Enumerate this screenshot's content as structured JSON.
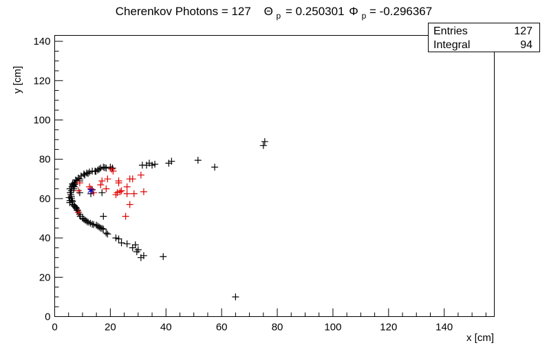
{
  "chart_data": {
    "type": "scatter",
    "title": {
      "prefix": "Cherenkov Photons = 127",
      "theta_symbol": "Θ",
      "theta_sub": "p",
      "theta_value": " = 0.250301",
      "phi_symbol": "Φ",
      "phi_sub": "p",
      "phi_value": " = -0.296367"
    },
    "xlabel": "x [cm]",
    "ylabel": "y [cm]",
    "xlim": [
      0,
      158
    ],
    "ylim": [
      0,
      143
    ],
    "xticks": [
      0,
      20,
      40,
      60,
      80,
      100,
      120,
      140
    ],
    "yticks": [
      0,
      20,
      40,
      60,
      80,
      100,
      120,
      140
    ],
    "stats": {
      "rows": [
        {
          "label": "Entries",
          "value": "127"
        },
        {
          "label": "Integral",
          "value": "94"
        }
      ]
    },
    "series": [
      {
        "color": "#000000",
        "marker": "plus",
        "points": [
          [
            5.5,
            59
          ],
          [
            5.8,
            62
          ],
          [
            6,
            64
          ],
          [
            5.5,
            65
          ],
          [
            6.2,
            66
          ],
          [
            6.6,
            67
          ],
          [
            7,
            68
          ],
          [
            7.6,
            69.5
          ],
          [
            8.5,
            70.5
          ],
          [
            9.5,
            71.5
          ],
          [
            10.5,
            72.5
          ],
          [
            11.5,
            73
          ],
          [
            12.5,
            73.5
          ],
          [
            13.5,
            74
          ],
          [
            14.5,
            74
          ],
          [
            15.5,
            74.5
          ],
          [
            16.5,
            75.5
          ],
          [
            17.5,
            76
          ],
          [
            18.5,
            75.5
          ],
          [
            20,
            76
          ],
          [
            20.8,
            75.5
          ],
          [
            6,
            60
          ],
          [
            6.2,
            59
          ],
          [
            5.4,
            58
          ],
          [
            6.5,
            57
          ],
          [
            7.2,
            56
          ],
          [
            7.8,
            55
          ],
          [
            8.3,
            54
          ],
          [
            8.6,
            53
          ],
          [
            9,
            52
          ],
          [
            10,
            50
          ],
          [
            11,
            49
          ],
          [
            12,
            48
          ],
          [
            13.5,
            47
          ],
          [
            15,
            46.5
          ],
          [
            15.5,
            46
          ],
          [
            16.5,
            45
          ],
          [
            17.5,
            44.5
          ],
          [
            18.5,
            42.5
          ],
          [
            22,
            40
          ],
          [
            23,
            39.5
          ],
          [
            26,
            37
          ],
          [
            29,
            36.5
          ],
          [
            29.5,
            33
          ],
          [
            31,
            30
          ],
          [
            39,
            30.5
          ],
          [
            65,
            10
          ],
          [
            31.5,
            77
          ],
          [
            33,
            77
          ],
          [
            34,
            78
          ],
          [
            35,
            77
          ],
          [
            41,
            78
          ],
          [
            51.5,
            79.5
          ],
          [
            57.5,
            76
          ],
          [
            75,
            87
          ],
          [
            75.5,
            89
          ],
          [
            17,
            63
          ],
          [
            9,
            63
          ],
          [
            13,
            62.5
          ],
          [
            13.5,
            64.5
          ],
          [
            17.5,
            51
          ],
          [
            7,
            66
          ],
          [
            6.4,
            67.5
          ],
          [
            7.4,
            68
          ],
          [
            9,
            69
          ],
          [
            5.7,
            63
          ],
          [
            6.8,
            65
          ],
          [
            10.8,
            72
          ],
          [
            12,
            72.8
          ],
          [
            14.8,
            73.8
          ],
          [
            16,
            75
          ],
          [
            18,
            75.8
          ],
          [
            6.4,
            58.5
          ],
          [
            7,
            56.5
          ],
          [
            7.6,
            55.5
          ],
          [
            8,
            54.2
          ],
          [
            9.2,
            51
          ],
          [
            10.5,
            49.5
          ],
          [
            11.5,
            48.5
          ],
          [
            12.8,
            47.5
          ],
          [
            14,
            46.8
          ],
          [
            16,
            45.5
          ],
          [
            17,
            44.8
          ],
          [
            19,
            42
          ],
          [
            24,
            37.5
          ],
          [
            28,
            35
          ],
          [
            30,
            34
          ],
          [
            32,
            31
          ],
          [
            36,
            77.5
          ],
          [
            42,
            79
          ],
          [
            5.2,
            60.5
          ],
          [
            6,
            61
          ],
          [
            5.6,
            63
          ],
          [
            6.8,
            66.5
          ],
          [
            7.2,
            67.2
          ],
          [
            8,
            69
          ],
          [
            9,
            70
          ]
        ]
      },
      {
        "color": "#e00000",
        "marker": "plus",
        "points": [
          [
            20.5,
            75
          ],
          [
            21,
            74
          ],
          [
            19,
            70
          ],
          [
            17,
            69
          ],
          [
            16.5,
            67
          ],
          [
            23,
            69
          ],
          [
            23,
            68
          ],
          [
            22.5,
            63
          ],
          [
            23.5,
            63.5
          ],
          [
            27,
            70
          ],
          [
            28,
            70
          ],
          [
            26,
            66
          ],
          [
            24,
            64
          ],
          [
            28.5,
            62.5
          ],
          [
            31,
            72
          ],
          [
            32,
            63.5
          ],
          [
            27,
            57
          ],
          [
            25.5,
            51
          ],
          [
            14,
            63
          ],
          [
            18.5,
            65
          ],
          [
            8.5,
            64
          ],
          [
            12.5,
            66
          ],
          [
            9,
            68
          ],
          [
            8.5,
            53
          ],
          [
            13,
            65
          ],
          [
            22,
            62
          ],
          [
            26,
            62.5
          ]
        ]
      },
      {
        "color": "#0000cc",
        "marker": "star",
        "points": [
          [
            13,
            64
          ]
        ]
      }
    ]
  }
}
